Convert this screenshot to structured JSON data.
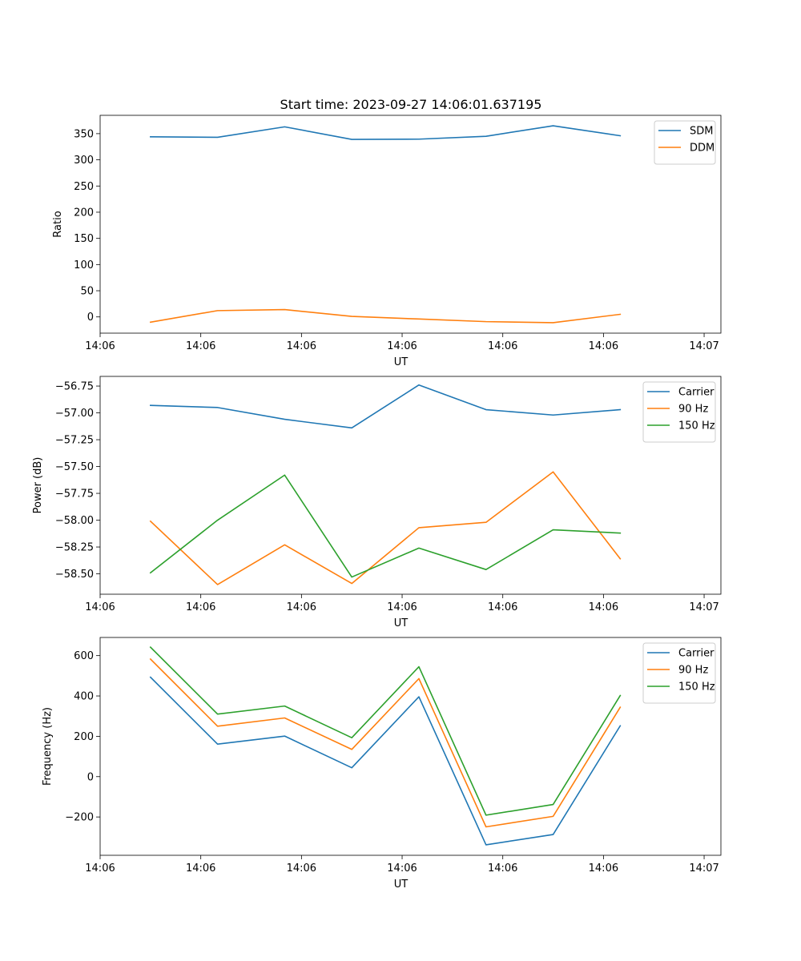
{
  "title": "Start time: 2023-09-27 14:06:01.637195",
  "chart_data": [
    {
      "type": "line",
      "xlabel": "UT",
      "ylabel": "Ratio",
      "x": [
        0,
        1,
        2,
        3,
        4,
        5,
        6,
        7
      ],
      "xlim": [
        -0.75,
        8.5
      ],
      "x_ticks": [
        -0.75,
        0.75,
        2.25,
        3.75,
        5.25,
        6.75,
        8.25
      ],
      "x_tick_labels": [
        "14:06",
        "14:06",
        "14:06",
        "14:06",
        "14:06",
        "14:06",
        "14:07"
      ],
      "ylim": [
        -31,
        385
      ],
      "y_ticks": [
        0,
        50,
        100,
        150,
        200,
        250,
        300,
        350
      ],
      "y_tick_labels": [
        "0",
        "50",
        "100",
        "150",
        "200",
        "250",
        "300",
        "350"
      ],
      "legend_position": "top-right",
      "series": [
        {
          "name": "SDM",
          "color": "#1f77b4",
          "values": [
            344,
            343,
            363,
            339,
            339.5,
            345,
            365,
            346
          ]
        },
        {
          "name": "DDM",
          "color": "#ff7f0e",
          "values": [
            -10,
            12,
            14,
            1,
            -4,
            -9,
            -11,
            5
          ]
        }
      ]
    },
    {
      "type": "line",
      "xlabel": "UT",
      "ylabel": "Power (dB)",
      "x": [
        0,
        1,
        2,
        3,
        4,
        5,
        6,
        7
      ],
      "xlim": [
        -0.75,
        8.5
      ],
      "x_ticks": [
        -0.75,
        0.75,
        2.25,
        3.75,
        5.25,
        6.75,
        8.25
      ],
      "x_tick_labels": [
        "14:06",
        "14:06",
        "14:06",
        "14:06",
        "14:06",
        "14:06",
        "14:07"
      ],
      "ylim": [
        -58.69,
        -56.66
      ],
      "y_ticks": [
        -58.5,
        -58.25,
        -58.0,
        -57.75,
        -57.5,
        -57.25,
        -57.0,
        -56.75
      ],
      "y_tick_labels": [
        "−58.50",
        "−58.25",
        "−58.00",
        "−57.75",
        "−57.50",
        "−57.25",
        "−57.00",
        "−56.75"
      ],
      "legend_position": "top-right",
      "series": [
        {
          "name": "Carrier",
          "color": "#1f77b4",
          "values": [
            -56.93,
            -56.95,
            -57.06,
            -57.14,
            -56.74,
            -56.97,
            -57.02,
            -56.97
          ]
        },
        {
          "name": "90 Hz",
          "color": "#ff7f0e",
          "values": [
            -58.01,
            -58.6,
            -58.23,
            -58.59,
            -58.07,
            -58.02,
            -57.55,
            -58.36
          ]
        },
        {
          "name": "150 Hz",
          "color": "#2ca02c",
          "values": [
            -58.49,
            -58.0,
            -57.58,
            -58.53,
            -58.26,
            -58.46,
            -58.09,
            -58.12
          ]
        }
      ]
    },
    {
      "type": "line",
      "xlabel": "UT",
      "ylabel": "Frequency (Hz)",
      "x": [
        0,
        1,
        2,
        3,
        4,
        5,
        6,
        7
      ],
      "xlim": [
        -0.75,
        8.5
      ],
      "x_ticks": [
        -0.75,
        0.75,
        2.25,
        3.75,
        5.25,
        6.75,
        8.25
      ],
      "x_tick_labels": [
        "14:06",
        "14:06",
        "14:06",
        "14:06",
        "14:06",
        "14:06",
        "14:07"
      ],
      "ylim": [
        -390,
        690
      ],
      "y_ticks": [
        -200,
        0,
        200,
        400,
        600
      ],
      "y_tick_labels": [
        "−200",
        "0",
        "200",
        "400",
        "600"
      ],
      "legend_position": "top-right",
      "series": [
        {
          "name": "Carrier",
          "color": "#1f77b4",
          "values": [
            493,
            161,
            201,
            44,
            396,
            -338,
            -287,
            252
          ]
        },
        {
          "name": "90 Hz",
          "color": "#ff7f0e",
          "values": [
            583,
            250,
            291,
            135,
            486,
            -249,
            -197,
            344
          ]
        },
        {
          "name": "150 Hz",
          "color": "#2ca02c",
          "values": [
            642,
            310,
            350,
            193,
            545,
            -191,
            -138,
            402
          ]
        }
      ]
    }
  ]
}
